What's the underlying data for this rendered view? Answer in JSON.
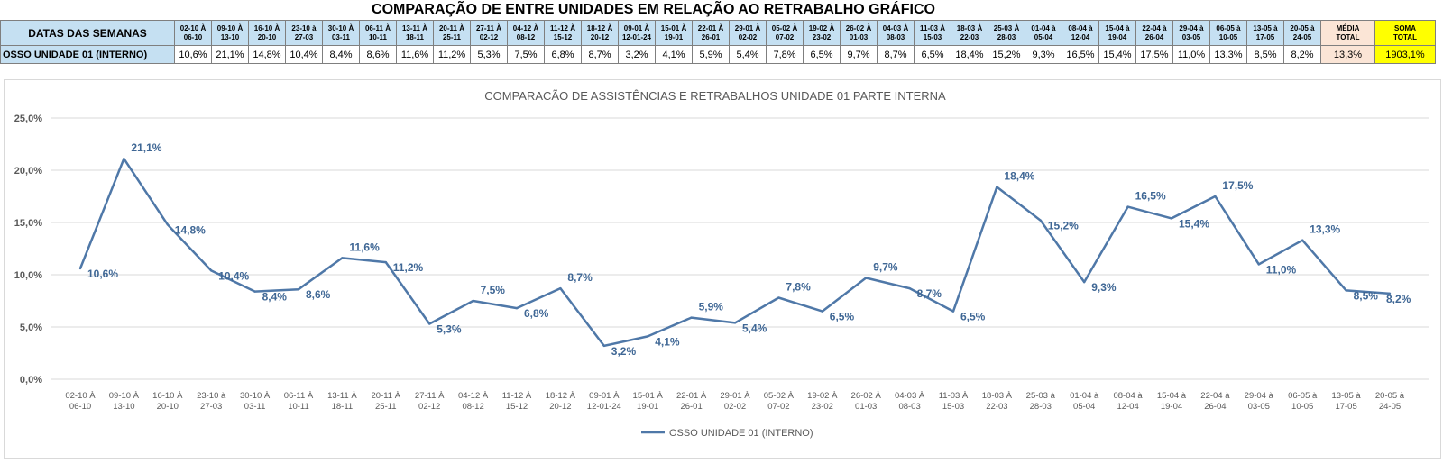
{
  "header": {
    "title": "COMPARAÇÃO DE ENTRE UNIDADES EM RELAÇÃO AO RETRABALHO GRÁFICO",
    "row_label_header": "DATAS DAS SEMANAS",
    "row_label_values": "OSSO UNIDADE 01 (INTERNO)",
    "media_label": [
      "MÉDIA",
      "TOTAL"
    ],
    "soma_label": [
      "SOMA",
      "TOTAL"
    ],
    "media_value": "13,3%",
    "soma_value": "1903,1%"
  },
  "weeks": [
    [
      "02-10 À",
      "06-10"
    ],
    [
      "09-10 À",
      "13-10"
    ],
    [
      "16-10 À",
      "20-10"
    ],
    [
      "23-10 à",
      "27-03"
    ],
    [
      "30-10 À",
      "03-11"
    ],
    [
      "06-11 À",
      "10-11"
    ],
    [
      "13-11 À",
      "18-11"
    ],
    [
      "20-11 À",
      "25-11"
    ],
    [
      "27-11 À",
      "02-12"
    ],
    [
      "04-12 À",
      "08-12"
    ],
    [
      "11-12 À",
      "15-12"
    ],
    [
      "18-12 À",
      "20-12"
    ],
    [
      "09-01 À",
      "12-01-24"
    ],
    [
      "15-01 À",
      "19-01"
    ],
    [
      "22-01 À",
      "26-01"
    ],
    [
      "29-01 À",
      "02-02"
    ],
    [
      "05-02 À",
      "07-02"
    ],
    [
      "19-02 À",
      "23-02"
    ],
    [
      "26-02 À",
      "01-03"
    ],
    [
      "04-03 À",
      "08-03"
    ],
    [
      "11-03 À",
      "15-03"
    ],
    [
      "18-03 À",
      "22-03"
    ],
    [
      "25-03 À",
      "28-03"
    ],
    [
      "01-04 à",
      "05-04"
    ],
    [
      "08-04 à",
      "12-04"
    ],
    [
      "15-04 à",
      "19-04"
    ],
    [
      "22-04 à",
      "26-04"
    ],
    [
      "29-04 à",
      "03-05"
    ],
    [
      "06-05 à",
      "10-05"
    ],
    [
      "13-05 à",
      "17-05"
    ],
    [
      "20-05 à",
      "24-05"
    ]
  ],
  "table_values": [
    "10,6%",
    "21,1%",
    "14,8%",
    "10,4%",
    "8,4%",
    "8,6%",
    "11,6%",
    "11,2%",
    "5,3%",
    "7,5%",
    "6,8%",
    "8,7%",
    "3,2%",
    "4,1%",
    "5,9%",
    "5,4%",
    "7,8%",
    "6,5%",
    "9,7%",
    "8,7%",
    "6,5%",
    "18,4%",
    "15,2%",
    "9,3%",
    "16,5%",
    "15,4%",
    "17,5%",
    "11,0%",
    "13,3%",
    "8,5%",
    "8,2%"
  ],
  "colors": {
    "line": "#4f78a8",
    "label": "#3f6795",
    "header_bg": "#c5e0f2",
    "media_bg": "#fbe5d6",
    "soma_bg": "#ffff00"
  },
  "chart_data": {
    "type": "line",
    "title": "COMPARACÃO DE ASSISTÊNCIAS E RETRABALHOS UNIDADE 01 PARTE INTERNA",
    "categories": [
      [
        "02-10 À",
        "06-10"
      ],
      [
        "09-10 À",
        "13-10"
      ],
      [
        "16-10 À",
        "20-10"
      ],
      [
        "23-10 à",
        "27-03"
      ],
      [
        "30-10 À",
        "03-11"
      ],
      [
        "06-11 À",
        "10-11"
      ],
      [
        "13-11 À",
        "18-11"
      ],
      [
        "20-11 À",
        "25-11"
      ],
      [
        "27-11 À",
        "02-12"
      ],
      [
        "04-12 À",
        "08-12"
      ],
      [
        "11-12 À",
        "15-12"
      ],
      [
        "18-12 À",
        "20-12"
      ],
      [
        "09-01 À",
        "12-01-24"
      ],
      [
        "15-01 À",
        "19-01"
      ],
      [
        "22-01 À",
        "26-01"
      ],
      [
        "29-01 À",
        "02-02"
      ],
      [
        "05-02 À",
        "07-02"
      ],
      [
        "19-02 À",
        "23-02"
      ],
      [
        "26-02 À",
        "01-03"
      ],
      [
        "04-03 À",
        "08-03"
      ],
      [
        "11-03 À",
        "15-03"
      ],
      [
        "18-03 À",
        "22-03"
      ],
      [
        "25-03 à",
        "28-03"
      ],
      [
        "01-04 à",
        "05-04"
      ],
      [
        "08-04 à",
        "12-04"
      ],
      [
        "15-04 à",
        "19-04"
      ],
      [
        "22-04 à",
        "26-04"
      ],
      [
        "29-04 à",
        "03-05"
      ],
      [
        "06-05 à",
        "10-05"
      ],
      [
        "13-05 à",
        "17-05"
      ],
      [
        "20-05 à",
        "24-05"
      ]
    ],
    "series": [
      {
        "name": "OSSO UNIDADE 01 (INTERNO)",
        "values": [
          10.6,
          21.1,
          14.8,
          10.4,
          8.4,
          8.6,
          11.6,
          11.2,
          5.3,
          7.5,
          6.8,
          8.7,
          3.2,
          4.1,
          5.9,
          5.4,
          7.8,
          6.5,
          9.7,
          8.7,
          6.5,
          18.4,
          15.2,
          9.3,
          16.5,
          15.4,
          17.5,
          11.0,
          13.3,
          8.5,
          8.2
        ],
        "labels": [
          "10,6%",
          "21,1%",
          "14,8%",
          "10,4%",
          "8,4%",
          "8,6%",
          "11,6%",
          "11,2%",
          "5,3%",
          "7,5%",
          "6,8%",
          "8,7%",
          "3,2%",
          "4,1%",
          "5,9%",
          "5,4%",
          "7,8%",
          "6,5%",
          "9,7%",
          "8,7%",
          "6,5%",
          "18,4%",
          "15,2%",
          "9,3%",
          "16,5%",
          "15,4%",
          "17,5%",
          "11,0%",
          "13,3%",
          "8,5%",
          "8,2%"
        ]
      }
    ],
    "y_ticks": [
      "0,0%",
      "5,0%",
      "10,0%",
      "15,0%",
      "20,0%",
      "25,0%"
    ],
    "ylim": [
      0,
      25
    ],
    "grid": true,
    "legend": "bottom-center"
  }
}
